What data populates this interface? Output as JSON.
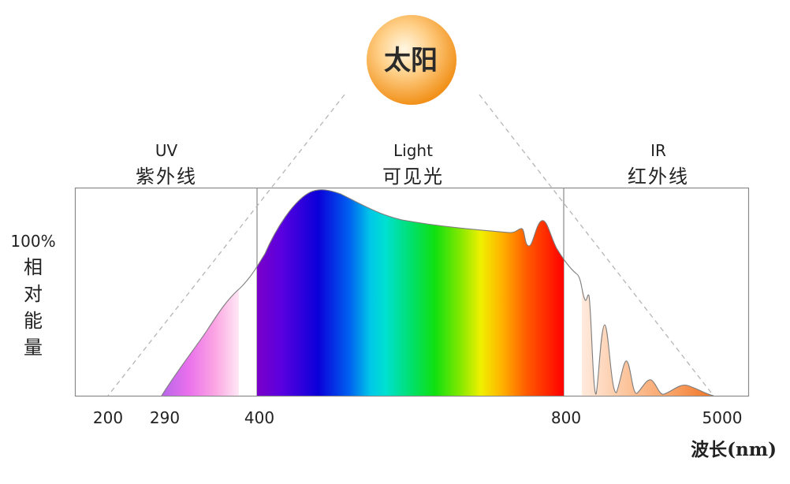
{
  "sun": {
    "label": "太阳"
  },
  "regions": [
    {
      "en": "UV",
      "zh": "紫外线"
    },
    {
      "en": "Light",
      "zh": "可见光"
    },
    {
      "en": "IR",
      "zh": "红外线"
    }
  ],
  "y_axis": {
    "percent": "100%",
    "chars": [
      "相",
      "对",
      "能",
      "量"
    ]
  },
  "x_axis": {
    "ticks": [
      "200",
      "290",
      "400",
      "800",
      "5000"
    ],
    "unit_label": "波长(nm)"
  },
  "colors": {
    "sun_center": "#fff3d6",
    "sun_edge": "#f29a1c",
    "frame": "#8a8a8a",
    "dashed_lines": "#b5b5b5",
    "uv_start": "#c060e8",
    "uv_end": "#ffe3f3",
    "ir_start": "#ffe6d6",
    "ir_end": "#f07d2a"
  }
}
